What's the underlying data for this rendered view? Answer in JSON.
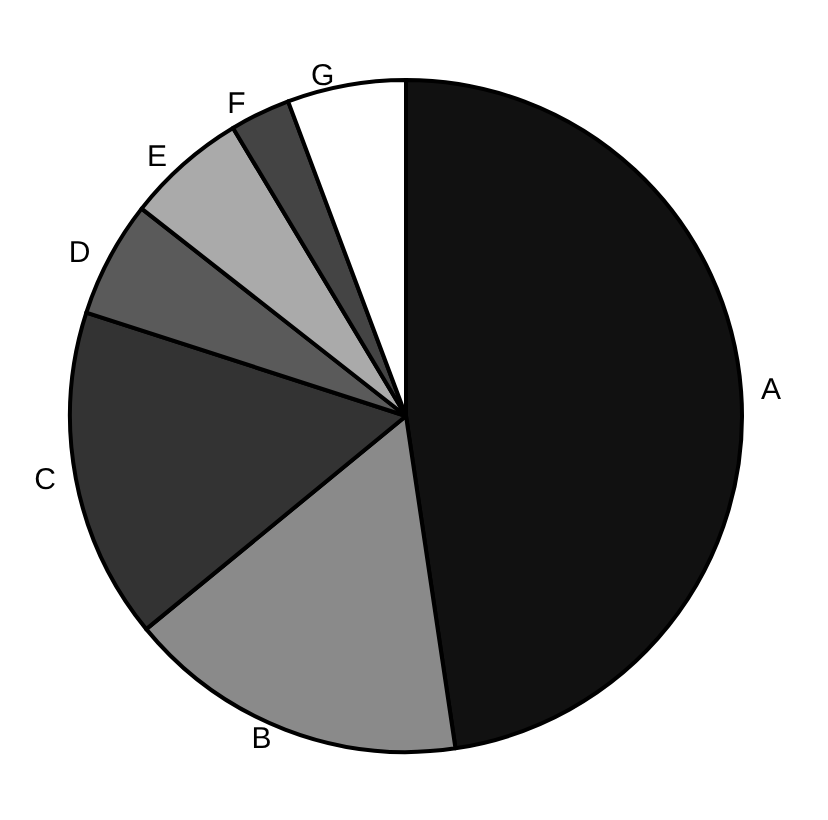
{
  "chart_data": {
    "type": "pie",
    "categories": [
      "A",
      "B",
      "C",
      "D",
      "E",
      "F",
      "G"
    ],
    "values": [
      47.6,
      16.4,
      15.9,
      5.6,
      5.8,
      2.9,
      5.7
    ],
    "colors": [
      "#111111",
      "#8a8a8a",
      "#333333",
      "#5a5a5a",
      "#aaaaaa",
      "#444444",
      "#ffffff"
    ],
    "legend": false
  }
}
